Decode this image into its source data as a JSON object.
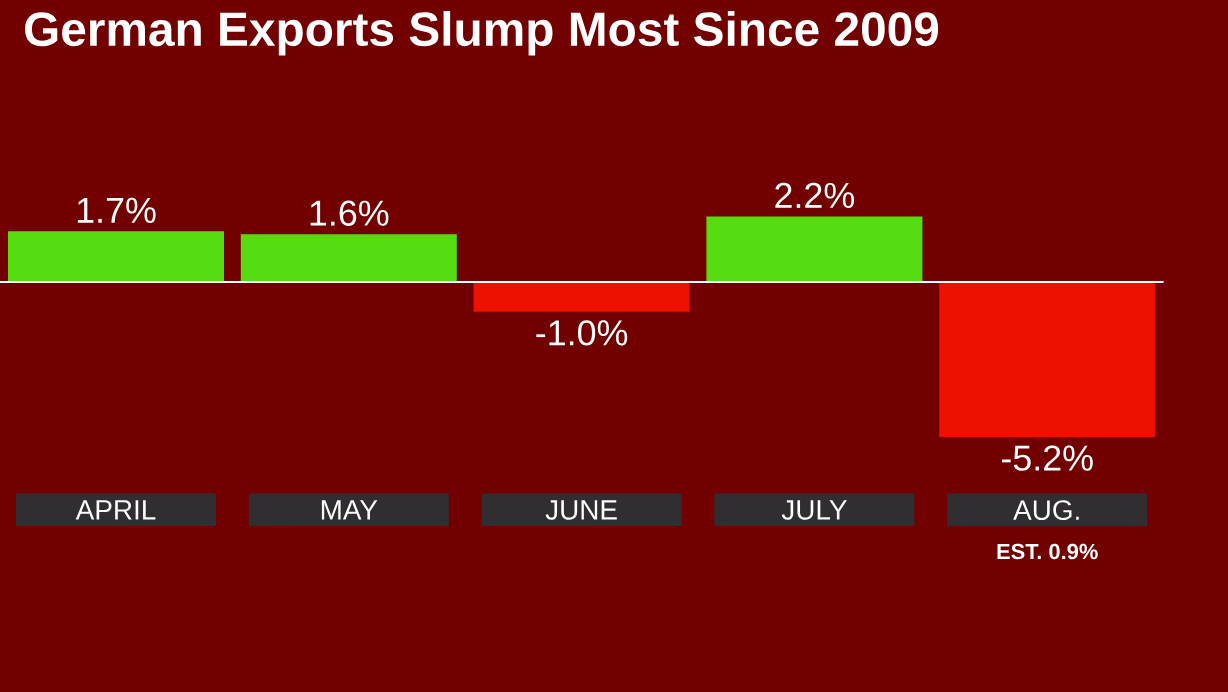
{
  "chart_data": {
    "type": "bar",
    "title": "German Exports Slump Most Since 2009",
    "categories": [
      "APRIL",
      "MAY",
      "JUNE",
      "JULY",
      "AUG."
    ],
    "values": [
      1.7,
      1.6,
      -1.0,
      2.2,
      -5.2
    ],
    "colors": [
      "#55dd11",
      "#55dd11",
      "#ee1100",
      "#55dd11",
      "#ee1100"
    ],
    "value_labels": [
      "1.7%",
      "1.6%",
      "-1.0%",
      "2.2%",
      "-5.2%"
    ],
    "annotations": [
      "EST. 0.9%"
    ]
  }
}
